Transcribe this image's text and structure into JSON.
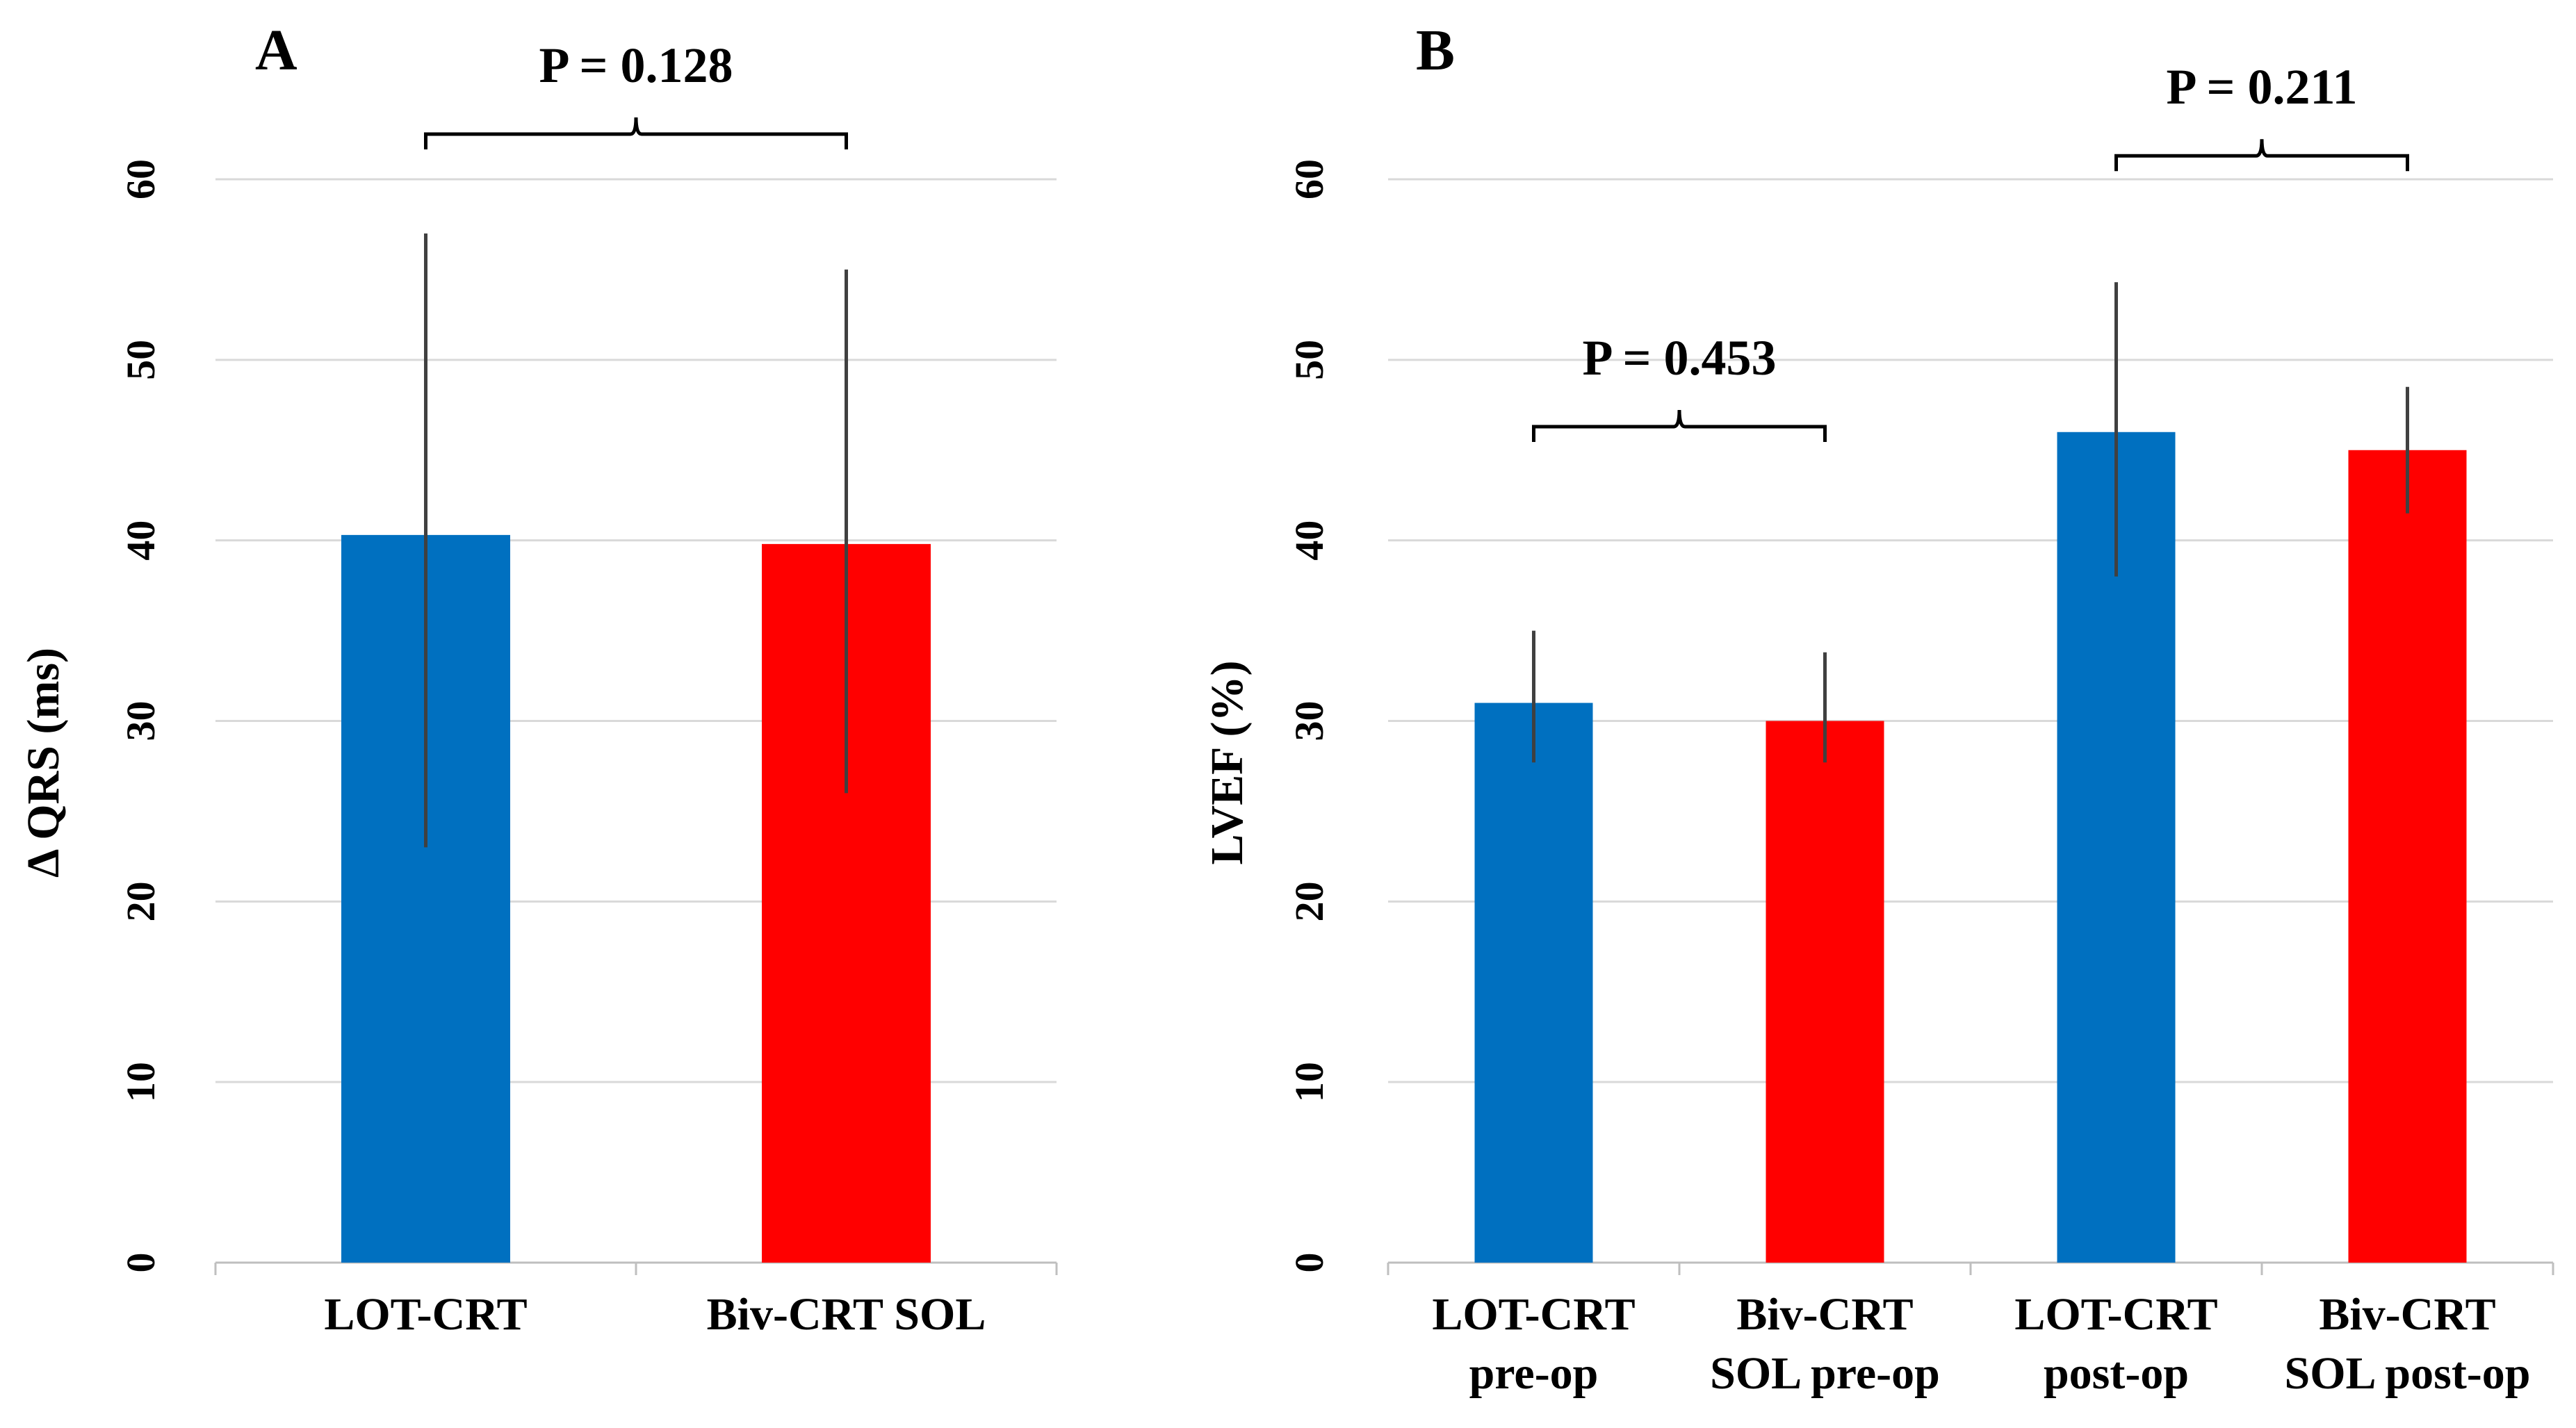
{
  "colors": {
    "lot_crt": "#0070C0",
    "biv_crt": "#FF0000",
    "grid": "#D9D9D9",
    "error_bar": "#404040",
    "axis": "#BFBFBF"
  },
  "chart_data": [
    {
      "type": "bar",
      "panel_label": "A",
      "title": "",
      "xlabel": "",
      "ylabel": "Δ QRS (ms)",
      "ylim": [
        0,
        60
      ],
      "yticks": [
        "0",
        "10",
        "20",
        "30",
        "40",
        "50",
        "60"
      ],
      "grid": true,
      "categories": [
        {
          "label": [
            "LOT-CRT"
          ],
          "value": 40.3,
          "err_low": 23,
          "err_high": 57,
          "color_key": "lot_crt"
        },
        {
          "label": [
            "Biv-CRT SOL"
          ],
          "value": 39.8,
          "err_low": 26,
          "err_high": 55,
          "color_key": "biv_crt"
        }
      ],
      "annotations": [
        {
          "text": "P = 0.128",
          "from": 0,
          "to": 1,
          "level": 62.5
        }
      ]
    },
    {
      "type": "bar",
      "panel_label": "B",
      "title": "",
      "xlabel": "",
      "ylabel": "LVEF (%)",
      "ylim": [
        0,
        60
      ],
      "yticks": [
        "0",
        "10",
        "20",
        "30",
        "40",
        "50",
        "60"
      ],
      "grid": true,
      "categories": [
        {
          "label": [
            "LOT-CRT",
            "pre-op"
          ],
          "value": 31,
          "err_low": 27.7,
          "err_high": 35,
          "color_key": "lot_crt"
        },
        {
          "label": [
            "Biv-CRT",
            "SOL pre-op"
          ],
          "value": 30,
          "err_low": 27.7,
          "err_high": 33.8,
          "color_key": "biv_crt"
        },
        {
          "label": [
            "LOT-CRT",
            "post-op"
          ],
          "value": 46,
          "err_low": 38,
          "err_high": 54.3,
          "color_key": "lot_crt"
        },
        {
          "label": [
            "Biv-CRT",
            "SOL post-op"
          ],
          "value": 45,
          "err_low": 41.5,
          "err_high": 48.5,
          "color_key": "biv_crt"
        }
      ],
      "annotations": [
        {
          "text": "P = 0.453",
          "from": 0,
          "to": 1,
          "level": 46.3
        },
        {
          "text": "P = 0.211",
          "from": 2,
          "to": 3,
          "level": 61.3
        }
      ]
    }
  ]
}
